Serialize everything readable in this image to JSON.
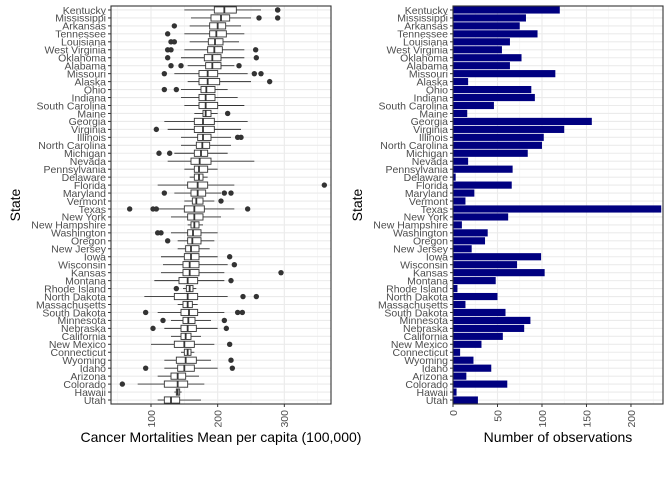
{
  "chart_data": [
    {
      "type": "boxplot",
      "xlabel": "Cancer Mortalities Mean per capita (100,000)",
      "ylabel": "State",
      "xlim": [
        40,
        370
      ],
      "xticks": [
        100,
        200,
        300
      ],
      "grid": true,
      "categories": [
        "Kentucky",
        "Mississippi",
        "Arkansas",
        "Tennessee",
        "Louisiana",
        "West Virginia",
        "Oklahoma",
        "Alabama",
        "Missouri",
        "Alaska",
        "Ohio",
        "Indiana",
        "South Carolina",
        "Maine",
        "Georgia",
        "Virginia",
        "Illinois",
        "North Carolina",
        "Michigan",
        "Nevada",
        "Pennsylvania",
        "Delaware",
        "Florida",
        "Maryland",
        "Vermont",
        "Texas",
        "New York",
        "New Hampshire",
        "Washington",
        "Oregon",
        "New Jersey",
        "Iowa",
        "Wisconsin",
        "Kansas",
        "Montana",
        "Rhode Island",
        "North Dakota",
        "Massachusetts",
        "South Dakota",
        "Minnesota",
        "Nebraska",
        "California",
        "New Mexico",
        "Connecticut",
        "Wyoming",
        "Idaho",
        "Arizona",
        "Colorado",
        "Hawaii",
        "Utah"
      ],
      "boxes": [
        {
          "whisker_low": 150,
          "q1": 195,
          "median": 210,
          "q3": 228,
          "whisker_high": 265,
          "outliers": [
            290,
            290
          ]
        },
        {
          "whisker_low": 160,
          "q1": 190,
          "median": 205,
          "q3": 218,
          "whisker_high": 250,
          "outliers": [
            262,
            290
          ]
        },
        {
          "whisker_low": 158,
          "q1": 188,
          "median": 200,
          "q3": 212,
          "whisker_high": 235,
          "outliers": [
            135
          ]
        },
        {
          "whisker_low": 150,
          "q1": 188,
          "median": 198,
          "q3": 213,
          "whisker_high": 240,
          "outliers": [
            125
          ]
        },
        {
          "whisker_low": 158,
          "q1": 186,
          "median": 196,
          "q3": 208,
          "whisker_high": 232,
          "outliers": [
            130,
            135
          ]
        },
        {
          "whisker_low": 150,
          "q1": 185,
          "median": 195,
          "q3": 207,
          "whisker_high": 240,
          "outliers": [
            125,
            130,
            257
          ]
        },
        {
          "whisker_low": 145,
          "q1": 180,
          "median": 192,
          "q3": 205,
          "whisker_high": 240,
          "outliers": [
            125,
            258
          ]
        },
        {
          "whisker_low": 155,
          "q1": 182,
          "median": 192,
          "q3": 205,
          "whisker_high": 225,
          "outliers": [
            130,
            145,
            232
          ]
        },
        {
          "whisker_low": 135,
          "q1": 172,
          "median": 185,
          "q3": 200,
          "whisker_high": 245,
          "outliers": [
            120,
            255,
            265
          ]
        },
        {
          "whisker_low": 155,
          "q1": 172,
          "median": 185,
          "q3": 203,
          "whisker_high": 250,
          "outliers": [
            278
          ]
        },
        {
          "whisker_low": 145,
          "q1": 175,
          "median": 183,
          "q3": 196,
          "whisker_high": 215,
          "outliers": [
            120,
            138
          ]
        },
        {
          "whisker_low": 145,
          "q1": 172,
          "median": 182,
          "q3": 196,
          "whisker_high": 230,
          "outliers": []
        },
        {
          "whisker_low": 150,
          "q1": 172,
          "median": 182,
          "q3": 200,
          "whisker_high": 240,
          "outliers": []
        },
        {
          "whisker_low": 165,
          "q1": 178,
          "median": 182,
          "q3": 190,
          "whisker_high": 200,
          "outliers": [
            215
          ]
        },
        {
          "whisker_low": 120,
          "q1": 165,
          "median": 178,
          "q3": 195,
          "whisker_high": 245,
          "outliers": []
        },
        {
          "whisker_low": 125,
          "q1": 165,
          "median": 178,
          "q3": 195,
          "whisker_high": 235,
          "outliers": [
            108
          ]
        },
        {
          "whisker_low": 145,
          "q1": 170,
          "median": 178,
          "q3": 190,
          "whisker_high": 220,
          "outliers": [
            230,
            235
          ]
        },
        {
          "whisker_low": 145,
          "q1": 168,
          "median": 177,
          "q3": 188,
          "whisker_high": 220,
          "outliers": []
        },
        {
          "whisker_low": 135,
          "q1": 165,
          "median": 175,
          "q3": 185,
          "whisker_high": 215,
          "outliers": [
            112,
            128
          ]
        },
        {
          "whisker_low": 125,
          "q1": 160,
          "median": 173,
          "q3": 190,
          "whisker_high": 255,
          "outliers": []
        },
        {
          "whisker_low": 150,
          "q1": 165,
          "median": 172,
          "q3": 185,
          "whisker_high": 200,
          "outliers": []
        },
        {
          "whisker_low": 158,
          "q1": 165,
          "median": 172,
          "q3": 178,
          "whisker_high": 185,
          "outliers": []
        },
        {
          "whisker_low": 110,
          "q1": 155,
          "median": 170,
          "q3": 185,
          "whisker_high": 225,
          "outliers": [
            360
          ]
        },
        {
          "whisker_low": 135,
          "q1": 160,
          "median": 170,
          "q3": 182,
          "whisker_high": 205,
          "outliers": [
            120,
            210,
            220
          ]
        },
        {
          "whisker_low": 150,
          "q1": 162,
          "median": 168,
          "q3": 178,
          "whisker_high": 195,
          "outliers": [
            205
          ]
        },
        {
          "whisker_low": 110,
          "q1": 150,
          "median": 165,
          "q3": 180,
          "whisker_high": 225,
          "outliers": [
            68,
            103,
            108,
            245
          ]
        },
        {
          "whisker_low": 130,
          "q1": 155,
          "median": 165,
          "q3": 178,
          "whisker_high": 205,
          "outliers": []
        },
        {
          "whisker_low": 155,
          "q1": 160,
          "median": 165,
          "q3": 172,
          "whisker_high": 178,
          "outliers": []
        },
        {
          "whisker_low": 130,
          "q1": 155,
          "median": 163,
          "q3": 175,
          "whisker_high": 200,
          "outliers": [
            110,
            115
          ]
        },
        {
          "whisker_low": 140,
          "q1": 155,
          "median": 162,
          "q3": 175,
          "whisker_high": 195,
          "outliers": [
            125
          ]
        },
        {
          "whisker_low": 140,
          "q1": 152,
          "median": 160,
          "q3": 172,
          "whisker_high": 188,
          "outliers": []
        },
        {
          "whisker_low": 115,
          "q1": 150,
          "median": 160,
          "q3": 172,
          "whisker_high": 200,
          "outliers": [
            218
          ]
        },
        {
          "whisker_low": 118,
          "q1": 148,
          "median": 158,
          "q3": 172,
          "whisker_high": 215,
          "outliers": [
            225
          ]
        },
        {
          "whisker_low": 115,
          "q1": 148,
          "median": 158,
          "q3": 172,
          "whisker_high": 210,
          "outliers": [
            295
          ]
        },
        {
          "whisker_low": 105,
          "q1": 142,
          "median": 155,
          "q3": 170,
          "whisker_high": 210,
          "outliers": [
            220
          ]
        },
        {
          "whisker_low": 148,
          "q1": 153,
          "median": 158,
          "q3": 163,
          "whisker_high": 168,
          "outliers": [
            138
          ]
        },
        {
          "whisker_low": 90,
          "q1": 135,
          "median": 155,
          "q3": 170,
          "whisker_high": 215,
          "outliers": [
            238,
            258
          ]
        },
        {
          "whisker_low": 140,
          "q1": 148,
          "median": 155,
          "q3": 162,
          "whisker_high": 170,
          "outliers": []
        },
        {
          "whisker_low": 110,
          "q1": 145,
          "median": 157,
          "q3": 170,
          "whisker_high": 210,
          "outliers": [
            92,
            230,
            237
          ]
        },
        {
          "whisker_low": 130,
          "q1": 148,
          "median": 156,
          "q3": 166,
          "whisker_high": 190,
          "outliers": [
            118,
            210
          ]
        },
        {
          "whisker_low": 120,
          "q1": 145,
          "median": 155,
          "q3": 168,
          "whisker_high": 200,
          "outliers": [
            103,
            213
          ]
        },
        {
          "whisker_low": 130,
          "q1": 145,
          "median": 152,
          "q3": 160,
          "whisker_high": 175,
          "outliers": []
        },
        {
          "whisker_low": 100,
          "q1": 135,
          "median": 150,
          "q3": 165,
          "whisker_high": 195,
          "outliers": [
            218
          ]
        },
        {
          "whisker_low": 145,
          "q1": 150,
          "median": 155,
          "q3": 160,
          "whisker_high": 165,
          "outliers": []
        },
        {
          "whisker_low": 120,
          "q1": 138,
          "median": 152,
          "q3": 168,
          "whisker_high": 190,
          "outliers": [
            220
          ]
        },
        {
          "whisker_low": 120,
          "q1": 140,
          "median": 150,
          "q3": 165,
          "whisker_high": 200,
          "outliers": [
            92,
            222
          ]
        },
        {
          "whisker_low": 110,
          "q1": 130,
          "median": 140,
          "q3": 152,
          "whisker_high": 172,
          "outliers": []
        },
        {
          "whisker_low": 80,
          "q1": 120,
          "median": 140,
          "q3": 155,
          "whisker_high": 180,
          "outliers": [
            57
          ]
        },
        {
          "whisker_low": 135,
          "q1": 138,
          "median": 140,
          "q3": 143,
          "whisker_high": 146,
          "outliers": []
        },
        {
          "whisker_low": 110,
          "q1": 120,
          "median": 130,
          "q3": 143,
          "whisker_high": 175,
          "outliers": []
        }
      ]
    },
    {
      "type": "bar",
      "orientation": "horizontal",
      "xlabel": "Number of observations",
      "ylabel": "State",
      "xlim": [
        0,
        236
      ],
      "xticks": [
        0,
        50,
        100,
        150,
        200
      ],
      "grid": true,
      "color": "#000080",
      "categories": [
        "Kentucky",
        "Mississippi",
        "Arkansas",
        "Tennessee",
        "Louisiana",
        "West Virginia",
        "Oklahoma",
        "Alabama",
        "Missouri",
        "Alaska",
        "Ohio",
        "Indiana",
        "South Carolina",
        "Maine",
        "Georgia",
        "Virginia",
        "Illinois",
        "North Carolina",
        "Michigan",
        "Nevada",
        "Pennsylvania",
        "Delaware",
        "Florida",
        "Maryland",
        "Vermont",
        "Texas",
        "New York",
        "New Hampshire",
        "Washington",
        "Oregon",
        "New Jersey",
        "Iowa",
        "Wisconsin",
        "Kansas",
        "Montana",
        "Rhode Island",
        "North Dakota",
        "Massachusetts",
        "South Dakota",
        "Minnesota",
        "Nebraska",
        "California",
        "New Mexico",
        "Connecticut",
        "Wyoming",
        "Idaho",
        "Arizona",
        "Colorado",
        "Hawaii",
        "Utah"
      ],
      "values": [
        120,
        82,
        75,
        95,
        64,
        55,
        77,
        64,
        115,
        17,
        88,
        92,
        46,
        16,
        156,
        125,
        102,
        100,
        84,
        17,
        67,
        3,
        66,
        24,
        14,
        234,
        62,
        10,
        39,
        36,
        21,
        99,
        72,
        103,
        48,
        5,
        50,
        14,
        59,
        87,
        80,
        56,
        32,
        8,
        23,
        43,
        15,
        61,
        4,
        28
      ]
    }
  ]
}
